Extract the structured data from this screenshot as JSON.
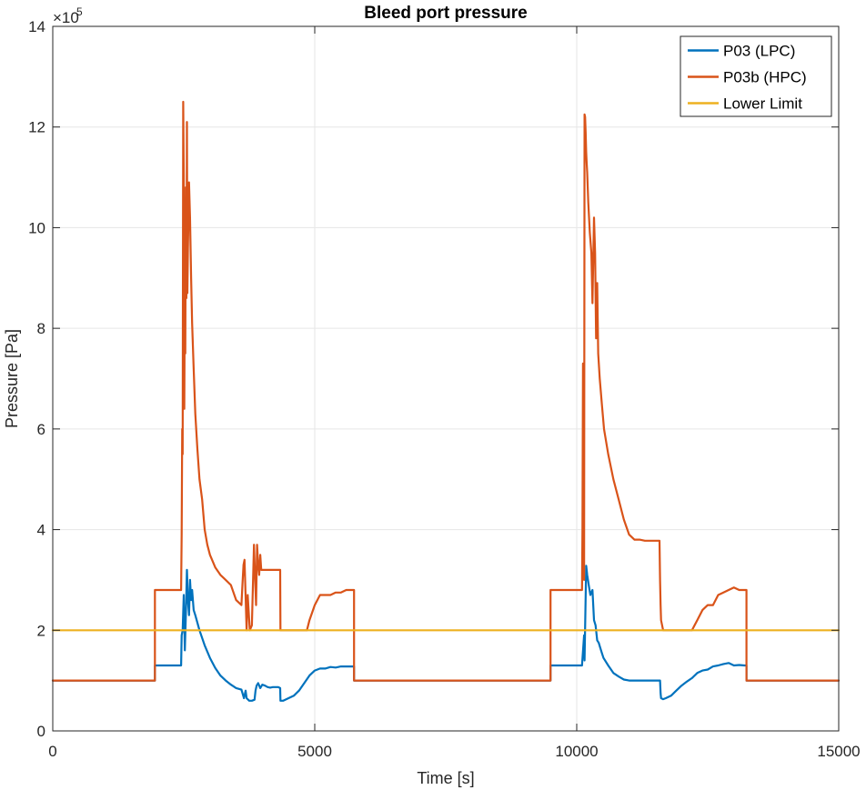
{
  "chart_data": {
    "type": "line",
    "title": "Bleed port pressure",
    "xlabel": "Time [s]",
    "ylabel": "Pressure [Pa]",
    "y_exponent_label": "×10",
    "y_exponent_power": "5",
    "y_multiplier": 100000,
    "xlim": [
      0,
      15000
    ],
    "ylim": [
      0,
      14
    ],
    "xticks": [
      0,
      5000,
      10000,
      15000
    ],
    "xtick_labels": [
      "0",
      "5000",
      "10000",
      "15000"
    ],
    "yticks": [
      0,
      2,
      4,
      6,
      8,
      10,
      12,
      14
    ],
    "ytick_labels": [
      "0",
      "2",
      "4",
      "6",
      "8",
      "10",
      "12",
      "14"
    ],
    "grid": true,
    "legend_position": "top-right",
    "series": [
      {
        "name": "P03 (LPC)",
        "color": "#0072BD",
        "x": [
          0,
          1950,
          1950,
          2450,
          2460,
          2480,
          2500,
          2520,
          2540,
          2560,
          2580,
          2600,
          2620,
          2640,
          2660,
          2690,
          2720,
          2800,
          2900,
          3000,
          3100,
          3200,
          3300,
          3400,
          3500,
          3600,
          3650,
          3680,
          3700,
          3750,
          3800,
          3850,
          3870,
          3890,
          3920,
          3960,
          4000,
          4050,
          4100,
          4150,
          4200,
          4300,
          4340,
          4345,
          4400,
          4500,
          4600,
          4700,
          4800,
          4900,
          5000,
          5100,
          5200,
          5300,
          5400,
          5500,
          5600,
          5700,
          5750,
          5750,
          9500,
          9500,
          10100,
          10140,
          10150,
          10180,
          10190,
          10200,
          10230,
          10260,
          10300,
          10330,
          10360,
          10390,
          10420,
          10450,
          10480,
          10510,
          10600,
          10700,
          10800,
          10900,
          11000,
          11100,
          11200,
          11300,
          11400,
          11500,
          11590,
          11600,
          11610,
          11650,
          11700,
          11800,
          11900,
          12000,
          12100,
          12200,
          12300,
          12400,
          12500,
          12600,
          12700,
          12800,
          12900,
          13000,
          13100,
          13200,
          13240,
          13240,
          15000
        ],
        "y": [
          1.0,
          1.0,
          1.3,
          1.3,
          1.9,
          2.0,
          2.7,
          1.6,
          2.3,
          3.2,
          2.6,
          2.3,
          3.0,
          2.6,
          2.8,
          2.4,
          2.3,
          2.0,
          1.7,
          1.45,
          1.25,
          1.1,
          1.0,
          0.92,
          0.85,
          0.82,
          0.65,
          0.8,
          0.65,
          0.6,
          0.6,
          0.62,
          0.8,
          0.9,
          0.95,
          0.85,
          0.92,
          0.9,
          0.87,
          0.86,
          0.87,
          0.87,
          0.85,
          0.6,
          0.6,
          0.65,
          0.7,
          0.8,
          0.95,
          1.1,
          1.2,
          1.24,
          1.24,
          1.27,
          1.26,
          1.28,
          1.28,
          1.28,
          1.28,
          1.0,
          1.0,
          1.3,
          1.3,
          1.9,
          1.4,
          3.28,
          3.2,
          3.1,
          2.9,
          2.7,
          2.8,
          2.2,
          2.1,
          1.8,
          1.75,
          1.65,
          1.55,
          1.45,
          1.3,
          1.15,
          1.08,
          1.02,
          1.0,
          1.0,
          1.0,
          1.0,
          1.0,
          1.0,
          1.0,
          0.75,
          0.65,
          0.63,
          0.65,
          0.7,
          0.8,
          0.9,
          0.98,
          1.05,
          1.15,
          1.2,
          1.22,
          1.28,
          1.3,
          1.33,
          1.35,
          1.3,
          1.31,
          1.3,
          1.3,
          1.0,
          1.0
        ]
      },
      {
        "name": "P03b (HPC)",
        "color": "#D95319",
        "x": [
          0,
          1950,
          1950,
          2450,
          2460,
          2470,
          2480,
          2490,
          2500,
          2510,
          2520,
          2530,
          2540,
          2550,
          2560,
          2570,
          2580,
          2590,
          2600,
          2620,
          2640,
          2660,
          2690,
          2720,
          2760,
          2800,
          2850,
          2900,
          2950,
          3000,
          3100,
          3200,
          3300,
          3400,
          3500,
          3600,
          3620,
          3640,
          3660,
          3700,
          3720,
          3760,
          3800,
          3840,
          3860,
          3880,
          3900,
          3920,
          3940,
          3960,
          3980,
          4000,
          4050,
          4100,
          4200,
          4300,
          4340,
          4345,
          4400,
          4600,
          4800,
          4850,
          4900,
          5000,
          5100,
          5200,
          5300,
          5400,
          5500,
          5600,
          5700,
          5750,
          5750,
          9500,
          9500,
          10100,
          10110,
          10120,
          10140,
          10150,
          10160,
          10170,
          10180,
          10190,
          10200,
          10220,
          10250,
          10280,
          10300,
          10330,
          10350,
          10370,
          10390,
          10410,
          10440,
          10480,
          10520,
          10600,
          10700,
          10800,
          10900,
          11000,
          11100,
          11200,
          11300,
          11400,
          11500,
          11580,
          11590,
          11600,
          11610,
          11650,
          11700,
          11800,
          11900,
          12000,
          12100,
          12200,
          12300,
          12400,
          12500,
          12600,
          12700,
          12800,
          12900,
          13000,
          13100,
          13200,
          13240,
          13240,
          15000
        ],
        "y": [
          1.0,
          1.0,
          2.8,
          2.8,
          3.9,
          6.0,
          5.5,
          12.5,
          11.0,
          6.4,
          9.0,
          7.5,
          10.8,
          8.6,
          12.1,
          8.7,
          9.6,
          10.2,
          10.9,
          10.2,
          9.0,
          8.1,
          7.2,
          6.3,
          5.6,
          5.0,
          4.6,
          4.0,
          3.7,
          3.5,
          3.25,
          3.1,
          3.0,
          2.9,
          2.6,
          2.5,
          2.9,
          3.3,
          3.4,
          2.0,
          2.7,
          2.0,
          2.1,
          3.7,
          3.1,
          2.5,
          3.7,
          3.3,
          3.1,
          3.5,
          3.2,
          3.2,
          3.2,
          3.2,
          3.2,
          3.2,
          3.2,
          2.0,
          2.0,
          2.0,
          2.0,
          2.0,
          2.2,
          2.5,
          2.7,
          2.7,
          2.7,
          2.75,
          2.75,
          2.8,
          2.8,
          2.8,
          1.0,
          1.0,
          2.8,
          2.8,
          4.0,
          7.3,
          3.0,
          12.25,
          12.2,
          11.9,
          11.5,
          11.3,
          11.1,
          10.5,
          9.9,
          9.5,
          8.5,
          10.2,
          9.5,
          7.8,
          8.9,
          7.5,
          7.0,
          6.5,
          6.0,
          5.5,
          5.0,
          4.6,
          4.2,
          3.9,
          3.8,
          3.8,
          3.78,
          3.78,
          3.78,
          3.78,
          3.0,
          2.5,
          2.2,
          2.0,
          2.0,
          2.0,
          2.0,
          2.0,
          2.0,
          2.0,
          2.2,
          2.4,
          2.5,
          2.5,
          2.7,
          2.75,
          2.8,
          2.85,
          2.8,
          2.8,
          2.8,
          1.0,
          1.0
        ]
      },
      {
        "name": "Lower Limit",
        "color": "#EDB120",
        "x": [
          0,
          15000
        ],
        "y": [
          2.0,
          2.0
        ]
      }
    ]
  }
}
